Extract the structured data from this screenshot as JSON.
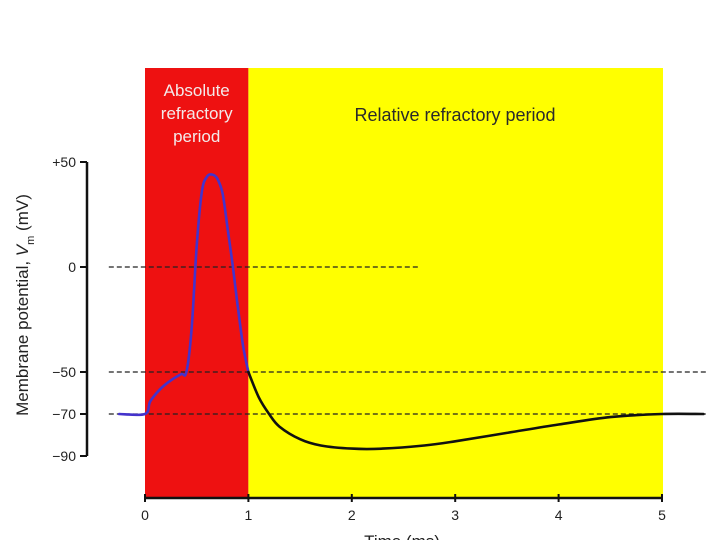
{
  "chart_data": {
    "type": "line",
    "title": "",
    "ylabel": "Membrane potential, Vm (mV)",
    "ylabel_main": "Membrane potential, ",
    "ylabel_var": "V",
    "ylabel_sub": "m",
    "ylabel_unit": " (mV)",
    "xlabel": "Time (ms)",
    "xlim": [
      0,
      5
    ],
    "ylim": [
      -90,
      50
    ],
    "x_ticks": [
      0,
      1,
      2,
      3,
      4,
      5
    ],
    "x_tick_labels": [
      "0",
      "1",
      "2",
      "3",
      "4",
      "5"
    ],
    "y_ticks": [
      50,
      0,
      -50,
      -70,
      -90
    ],
    "y_tick_labels": [
      "+50",
      "0",
      "−50",
      "−70",
      "−90"
    ],
    "regions": [
      {
        "name": "absolute",
        "label_lines": [
          "Absolute",
          "refractory",
          "period"
        ],
        "x_start": 0,
        "x_end": 1,
        "color": "#ee1111"
      },
      {
        "name": "relative",
        "label_lines": [
          "Relative refractory period"
        ],
        "x_start": 1,
        "x_end": 5,
        "color": "#ffff00"
      }
    ],
    "reference_lines": [
      {
        "y": 0,
        "x_start": -0.35,
        "x_end": 2.65,
        "style": "dashed"
      },
      {
        "y": -50,
        "x_start": -0.35,
        "x_end": 5.45,
        "style": "dashed"
      },
      {
        "y": -70,
        "x_start": -0.35,
        "x_end": 5.45,
        "style": "dashed"
      }
    ],
    "series": [
      {
        "color": "#4433cc",
        "x": [
          -0.25,
          0.0,
          0.05,
          0.15,
          0.25,
          0.35,
          0.4,
          0.45,
          0.5,
          0.55,
          0.6,
          0.65,
          0.7,
          0.75,
          0.8,
          0.85,
          0.9,
          0.95,
          1.0
        ],
        "y": [
          -70,
          -70,
          -64,
          -58,
          -54,
          -51,
          -50,
          -30,
          10,
          36,
          43,
          44,
          42,
          35,
          18,
          0,
          -20,
          -38,
          -50
        ]
      },
      {
        "color": "#111111",
        "x": [
          1.0,
          1.1,
          1.2,
          1.3,
          1.5,
          1.7,
          2.0,
          2.3,
          2.7,
          3.0,
          3.5,
          4.0,
          4.5,
          5.0,
          5.4
        ],
        "y": [
          -50,
          -62,
          -70,
          -76,
          -82,
          -85,
          -86.5,
          -86.5,
          -85,
          -83,
          -79,
          -75,
          -71.5,
          -70,
          -70
        ]
      }
    ]
  },
  "colors": {
    "absolute": "#ee1111",
    "relative": "#ffff00",
    "spike": "#4433cc",
    "recovery": "#111111",
    "axis": "#111111"
  }
}
